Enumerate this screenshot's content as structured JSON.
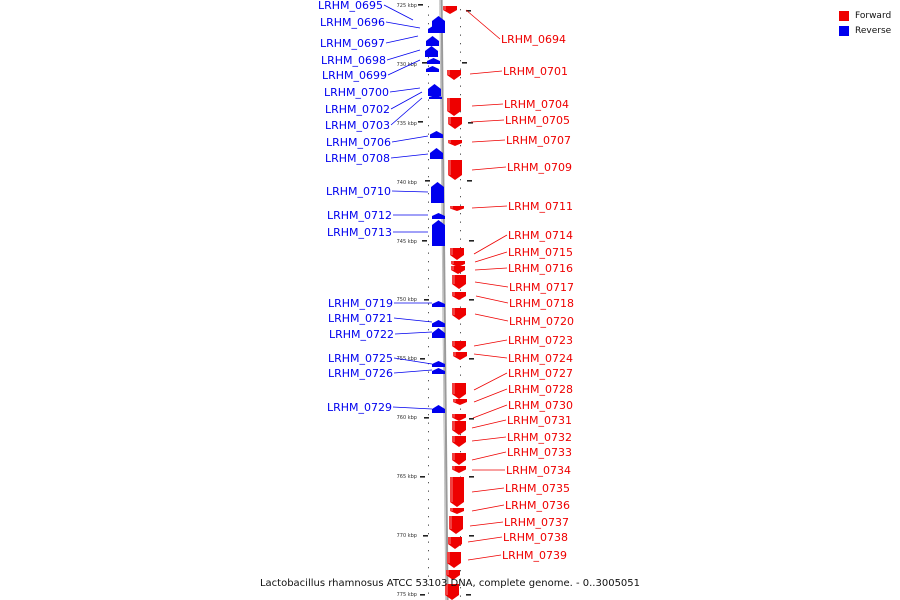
{
  "caption": "Lactobacillus rhamnosus ATCC 53103 DNA, complete genome. - 0..3005051",
  "legend": [
    {
      "label": "Forward",
      "color": "#ee0000"
    },
    {
      "label": "Reverse",
      "color": "#0000ee"
    }
  ],
  "colors": {
    "forward": "#ee0000",
    "reverse": "#0000ee",
    "genome_line": "#9a9a9a"
  },
  "ticks": [
    "725 kbp",
    "730 kbp",
    "735 kbp",
    "740 kbp",
    "745 kbp",
    "750 kbp",
    "755 kbp",
    "760 kbp",
    "765 kbp",
    "770 kbp",
    "775 kbp"
  ],
  "reverse_genes": [
    "LRHM_0695",
    "LRHM_0696",
    "LRHM_0697",
    "LRHM_0698",
    "LRHM_0699",
    "LRHM_0700",
    "LRHM_0702",
    "LRHM_0703",
    "LRHM_0706",
    "LRHM_0708",
    "LRHM_0710",
    "LRHM_0712",
    "LRHM_0713",
    "LRHM_0719",
    "LRHM_0721",
    "LRHM_0722",
    "LRHM_0725",
    "LRHM_0726",
    "LRHM_0729"
  ],
  "forward_genes": [
    "LRHM_0694",
    "LRHM_0701",
    "LRHM_0704",
    "LRHM_0705",
    "LRHM_0707",
    "LRHM_0709",
    "LRHM_0711",
    "LRHM_0714",
    "LRHM_0715",
    "LRHM_0716",
    "LRHM_0717",
    "LRHM_0718",
    "LRHM_0720",
    "LRHM_0723",
    "LRHM_0724",
    "LRHM_0727",
    "LRHM_0728",
    "LRHM_0730",
    "LRHM_0731",
    "LRHM_0732",
    "LRHM_0733",
    "LRHM_0734",
    "LRHM_0735",
    "LRHM_0736",
    "LRHM_0737",
    "LRHM_0738",
    "LRHM_0739"
  ]
}
